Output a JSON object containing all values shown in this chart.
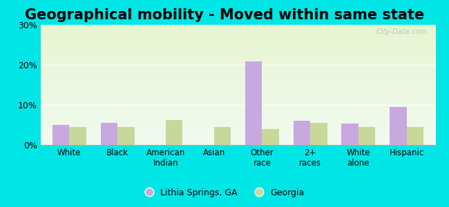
{
  "title": "Geographical mobility - Moved within same state",
  "categories": [
    "White",
    "Black",
    "American\nIndian",
    "Asian",
    "Other\nrace",
    "2+\nraces",
    "White\nalone",
    "Hispanic"
  ],
  "lithia_values": [
    5.0,
    5.5,
    0.0,
    0.0,
    20.8,
    6.0,
    5.3,
    9.5
  ],
  "georgia_values": [
    4.5,
    4.5,
    6.2,
    4.5,
    4.0,
    5.5,
    4.5,
    4.5
  ],
  "lithia_color": "#c9a8e0",
  "georgia_color": "#c8d89a",
  "ylim": [
    0,
    30
  ],
  "yticks": [
    0,
    10,
    20,
    30
  ],
  "ytick_labels": [
    "0%",
    "10%",
    "20%",
    "30%"
  ],
  "outer_bg": "#00e5e5",
  "title_fontsize": 15,
  "legend_lithia": "Lithia Springs, GA",
  "legend_georgia": "Georgia",
  "watermark": "City-Data.com"
}
